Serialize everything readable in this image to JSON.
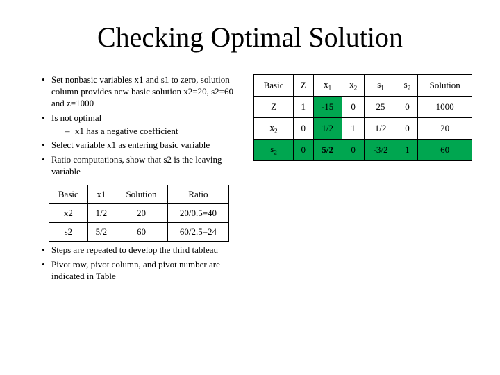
{
  "title": "Checking Optimal Solution",
  "bullets": {
    "b1": "Set nonbasic variables x1 and s1 to zero, solution column provides new basic solution x2=20, s2=60 and z=1000",
    "b2": "Is not optimal",
    "b2sub": "x1 has a negative coefficient",
    "b3": "Select variable x1 as entering basic variable",
    "b4": "Ratio computations, show that s2 is the leaving variable",
    "b5": "Steps are repeated to develop the third tableau",
    "b6": "Pivot row, pivot column, and pivot number are indicated in Table"
  },
  "main_table": {
    "headers": [
      "Basic",
      "Z",
      "x",
      "1",
      "x",
      "2",
      "s",
      "1",
      "s",
      "2",
      "Solution"
    ],
    "rows": [
      {
        "cells": [
          "Z",
          "1",
          "-15",
          "0",
          "25",
          "0",
          "1000"
        ],
        "hl_col": 2
      },
      {
        "cells_html": [
          "x<sub>2</sub>",
          "0",
          "1/2",
          "1",
          "1/2",
          "0",
          "20"
        ],
        "basic": "x",
        "basic_sub": "2",
        "hl_col": 2
      },
      {
        "cells_html": [
          "s<sub>2</sub>",
          "0",
          "5/2",
          "0",
          "-3/2",
          "1",
          "60"
        ],
        "basic": "s",
        "basic_sub": "2",
        "hl_row": true
      }
    ],
    "header_bg": "#ffffff",
    "highlight_bg": "#00a650",
    "cell_bg": "#ffffff",
    "border_color": "#000000",
    "fontsize": 13,
    "pivot_bold": "5/2"
  },
  "ratio_table": {
    "headers": [
      "Basic",
      "x1",
      "Solution",
      "Ratio"
    ],
    "rows": [
      [
        "x2",
        "1/2",
        "20",
        "20/0.5=40"
      ],
      [
        "s2",
        "5/2",
        "60",
        "60/2.5=24"
      ]
    ],
    "fontsize": 13,
    "border_color": "#000000"
  },
  "colors": {
    "background": "#ffffff",
    "text": "#000000",
    "highlight": "#00a650"
  },
  "typography": {
    "title_fontsize": 40,
    "body_fontsize": 13,
    "font_family": "Times New Roman"
  }
}
